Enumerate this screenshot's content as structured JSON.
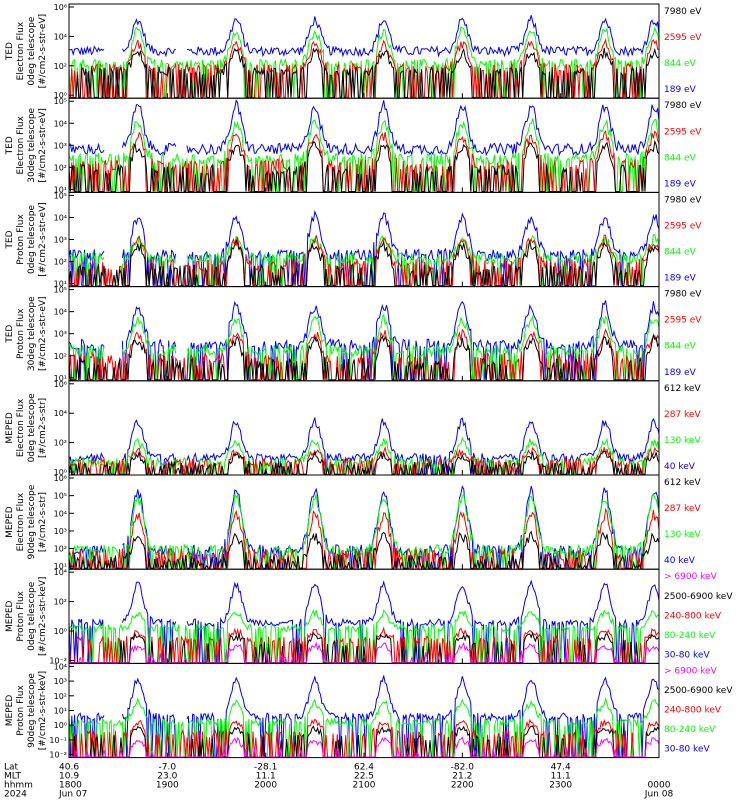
{
  "colors": {
    "black": "#000000",
    "red": "#ff0000",
    "green": "#00ff00",
    "blue": "#0000ff",
    "magenta": "#ff00ff",
    "background": "#ffffff"
  },
  "chart_data": [
    {
      "type": "line",
      "ylabel": [
        "TED",
        "Electron Flux",
        "0deg telescope",
        "[#/cm2-s-str-eV]"
      ],
      "ylim": [
        1,
        1000000
      ],
      "yscale": "log",
      "yticks": [
        "10⁰",
        "10²",
        "10⁴",
        "10⁶"
      ],
      "series": [
        {
          "name": "7980 eV",
          "color": "black",
          "base": 50,
          "peak": 800,
          "floor_frac": 0.5
        },
        {
          "name": "2595 eV",
          "color": "red",
          "base": 80,
          "peak": 3000,
          "floor_frac": 0.5
        },
        {
          "name": "844 eV",
          "color": "green",
          "base": 150,
          "peak": 20000,
          "floor_frac": 0.3
        },
        {
          "name": "189 eV",
          "color": "blue",
          "base": 1000,
          "peak": 100000,
          "floor_frac": 0
        }
      ]
    },
    {
      "type": "line",
      "ylabel": [
        "TED",
        "Electron Flux",
        "30deg telescope",
        "[#/cm2-s-str-eV]"
      ],
      "ylim": [
        1,
        100000
      ],
      "yscale": "log",
      "yticks": [
        "10¹",
        "10²",
        "10³",
        "10⁴",
        "10⁵"
      ],
      "series": [
        {
          "name": "7980 eV",
          "color": "black",
          "base": 15,
          "peak": 300,
          "floor_frac": 0.6
        },
        {
          "name": "2595 eV",
          "color": "red",
          "base": 30,
          "peak": 1000,
          "floor_frac": 0.5
        },
        {
          "name": "844 eV",
          "color": "green",
          "base": 60,
          "peak": 5000,
          "floor_frac": 0.3
        },
        {
          "name": "189 eV",
          "color": "blue",
          "base": 200,
          "peak": 40000,
          "floor_frac": 0
        }
      ]
    },
    {
      "type": "line",
      "ylabel": [
        "TED",
        "Proton Flux",
        "0deg telescope",
        "[#/cm2-s-str-eV]"
      ],
      "ylim": [
        1,
        100000
      ],
      "yscale": "log",
      "yticks": [
        "10¹",
        "10²",
        "10³",
        "10⁴",
        "10⁵"
      ],
      "series": [
        {
          "name": "7980 eV",
          "color": "black",
          "base": 8,
          "peak": 150,
          "floor_frac": 0.6
        },
        {
          "name": "2595 eV",
          "color": "red",
          "base": 15,
          "peak": 300,
          "floor_frac": 0.5
        },
        {
          "name": "844 eV",
          "color": "green",
          "base": 30,
          "peak": 300,
          "floor_frac": 0.2
        },
        {
          "name": "189 eV",
          "color": "blue",
          "base": 50,
          "peak": 5000,
          "floor_frac": 0.2
        }
      ]
    },
    {
      "type": "line",
      "ylabel": [
        "TED",
        "Proton Flux",
        "30deg telescope",
        "[#/cm2-s-str-eV]"
      ],
      "ylim": [
        1,
        100000
      ],
      "yscale": "log",
      "yticks": [
        "10¹",
        "10²",
        "10³",
        "10⁴",
        "10⁵"
      ],
      "series": [
        {
          "name": "7980 eV",
          "color": "black",
          "base": 8,
          "peak": 150,
          "floor_frac": 0.6
        },
        {
          "name": "2595 eV",
          "color": "red",
          "base": 15,
          "peak": 300,
          "floor_frac": 0.5
        },
        {
          "name": "844 eV",
          "color": "green",
          "base": 40,
          "peak": 2000,
          "floor_frac": 0.2
        },
        {
          "name": "189 eV",
          "color": "blue",
          "base": 80,
          "peak": 10000,
          "floor_frac": 0.2
        }
      ]
    },
    {
      "type": "line",
      "ylabel": [
        "MEPED",
        "Electron Flux",
        "0deg telescope",
        "[#/cm2-s-str]"
      ],
      "ylim": [
        1,
        10000000
      ],
      "yscale": "log",
      "yticks": [
        "10⁰",
        "10²",
        "10⁴",
        "10⁶"
      ],
      "series": [
        {
          "name": "612 keV",
          "color": "black",
          "base": 5,
          "peak": 30,
          "floor_frac": 0.6
        },
        {
          "name": "287 keV",
          "color": "red",
          "base": 8,
          "peak": 60,
          "floor_frac": 0.5
        },
        {
          "name": "130 keV",
          "color": "green",
          "base": 10,
          "peak": 300,
          "floor_frac": 0.3
        },
        {
          "name": "40 keV",
          "color": "blue",
          "base": 20,
          "peak": 10000,
          "floor_frac": 0.1
        }
      ]
    },
    {
      "type": "line",
      "ylabel": [
        "MEPED",
        "Electron Flux",
        "90deg telescope",
        "[#/cm2-s-str]"
      ],
      "ylim": [
        10,
        1000000
      ],
      "yscale": "log",
      "yticks": [
        "10¹",
        "10²",
        "10³",
        "10⁴",
        "10⁵",
        "10⁶"
      ],
      "series": [
        {
          "name": "612 keV",
          "color": "black",
          "base": 30,
          "peak": 600,
          "floor_frac": 0.6
        },
        {
          "name": "287 keV",
          "color": "red",
          "base": 60,
          "peak": 8000,
          "floor_frac": 0.5
        },
        {
          "name": "130 keV",
          "color": "green",
          "base": 100,
          "peak": 60000,
          "floor_frac": 0.3
        },
        {
          "name": "40 keV",
          "color": "blue",
          "base": 100,
          "peak": 150000,
          "floor_frac": 0.2
        }
      ]
    },
    {
      "type": "line",
      "ylabel": [
        "MEPED",
        "Proton Flux",
        "0deg telescope",
        "[#/cm2-s-str-keV]"
      ],
      "ylim": [
        0.001,
        100000
      ],
      "yscale": "log",
      "yticks": [
        "10⁻²",
        "10⁰",
        "10²",
        "10⁴"
      ],
      "series": [
        {
          "name": "> 6900 keV",
          "color": "magenta",
          "base": 0.005,
          "peak": 0.03,
          "floor_frac": 0.9
        },
        {
          "name": "2500-6900 keV",
          "color": "black",
          "base": 0.05,
          "peak": 0.2,
          "floor_frac": 0.9
        },
        {
          "name": "240-800 keV",
          "color": "red",
          "base": 0.1,
          "peak": 0.5,
          "floor_frac": 0.6
        },
        {
          "name": "80-240 keV",
          "color": "green",
          "base": 1,
          "peak": 20,
          "floor_frac": 0.3
        },
        {
          "name": "30-80 keV",
          "color": "blue",
          "base": 3,
          "peak": 5000,
          "floor_frac": 0.2
        }
      ]
    },
    {
      "type": "line",
      "ylabel": [
        "MEPED",
        "Proton Flux",
        "90deg telescope",
        "[#/cm2-s-str-keV]"
      ],
      "ylim": [
        0.001,
        100000
      ],
      "yscale": "log",
      "yticks": [
        "10⁻²",
        "10⁻¹",
        "10⁰",
        "10¹",
        "10²",
        "10³",
        "10⁴"
      ],
      "series": [
        {
          "name": "> 6900 keV",
          "color": "magenta",
          "base": 0.005,
          "peak": 0.03,
          "floor_frac": 0.9
        },
        {
          "name": "2500-6900 keV",
          "color": "black",
          "base": 0.05,
          "peak": 0.3,
          "floor_frac": 0.9
        },
        {
          "name": "240-800 keV",
          "color": "red",
          "base": 0.1,
          "peak": 1,
          "floor_frac": 0.6
        },
        {
          "name": "80-240 keV",
          "color": "green",
          "base": 1,
          "peak": 50,
          "floor_frac": 0.3
        },
        {
          "name": "30-80 keV",
          "color": "blue",
          "base": 3,
          "peak": 5000,
          "floor_frac": 0.2
        }
      ]
    }
  ],
  "xaxis": {
    "row_labels": [
      "Lat",
      "MLT",
      "hhmm",
      "2024"
    ],
    "ticks": [
      {
        "lat": "40.6",
        "mlt": "10.9",
        "hhmm": "1800",
        "date": "Jun 07"
      },
      {
        "lat": "-7.0",
        "mlt": "23.0",
        "hhmm": "1900",
        "date": ""
      },
      {
        "lat": "-28.1",
        "mlt": "11.1",
        "hhmm": "2000",
        "date": ""
      },
      {
        "lat": "62.4",
        "mlt": "22.5",
        "hhmm": "2100",
        "date": ""
      },
      {
        "lat": "-82.0",
        "mlt": "21.2",
        "hhmm": "2200",
        "date": ""
      },
      {
        "lat": "47.4",
        "mlt": "11.1",
        "hhmm": "2300",
        "date": ""
      },
      {
        "lat": "",
        "mlt": "",
        "hhmm": "0000",
        "date": "Jun 08"
      }
    ],
    "time_range_hours": [
      18,
      24
    ],
    "passes_hours": [
      18.7,
      19.7,
      20.5,
      21.2,
      22.0,
      22.7,
      23.45,
      23.95
    ]
  }
}
